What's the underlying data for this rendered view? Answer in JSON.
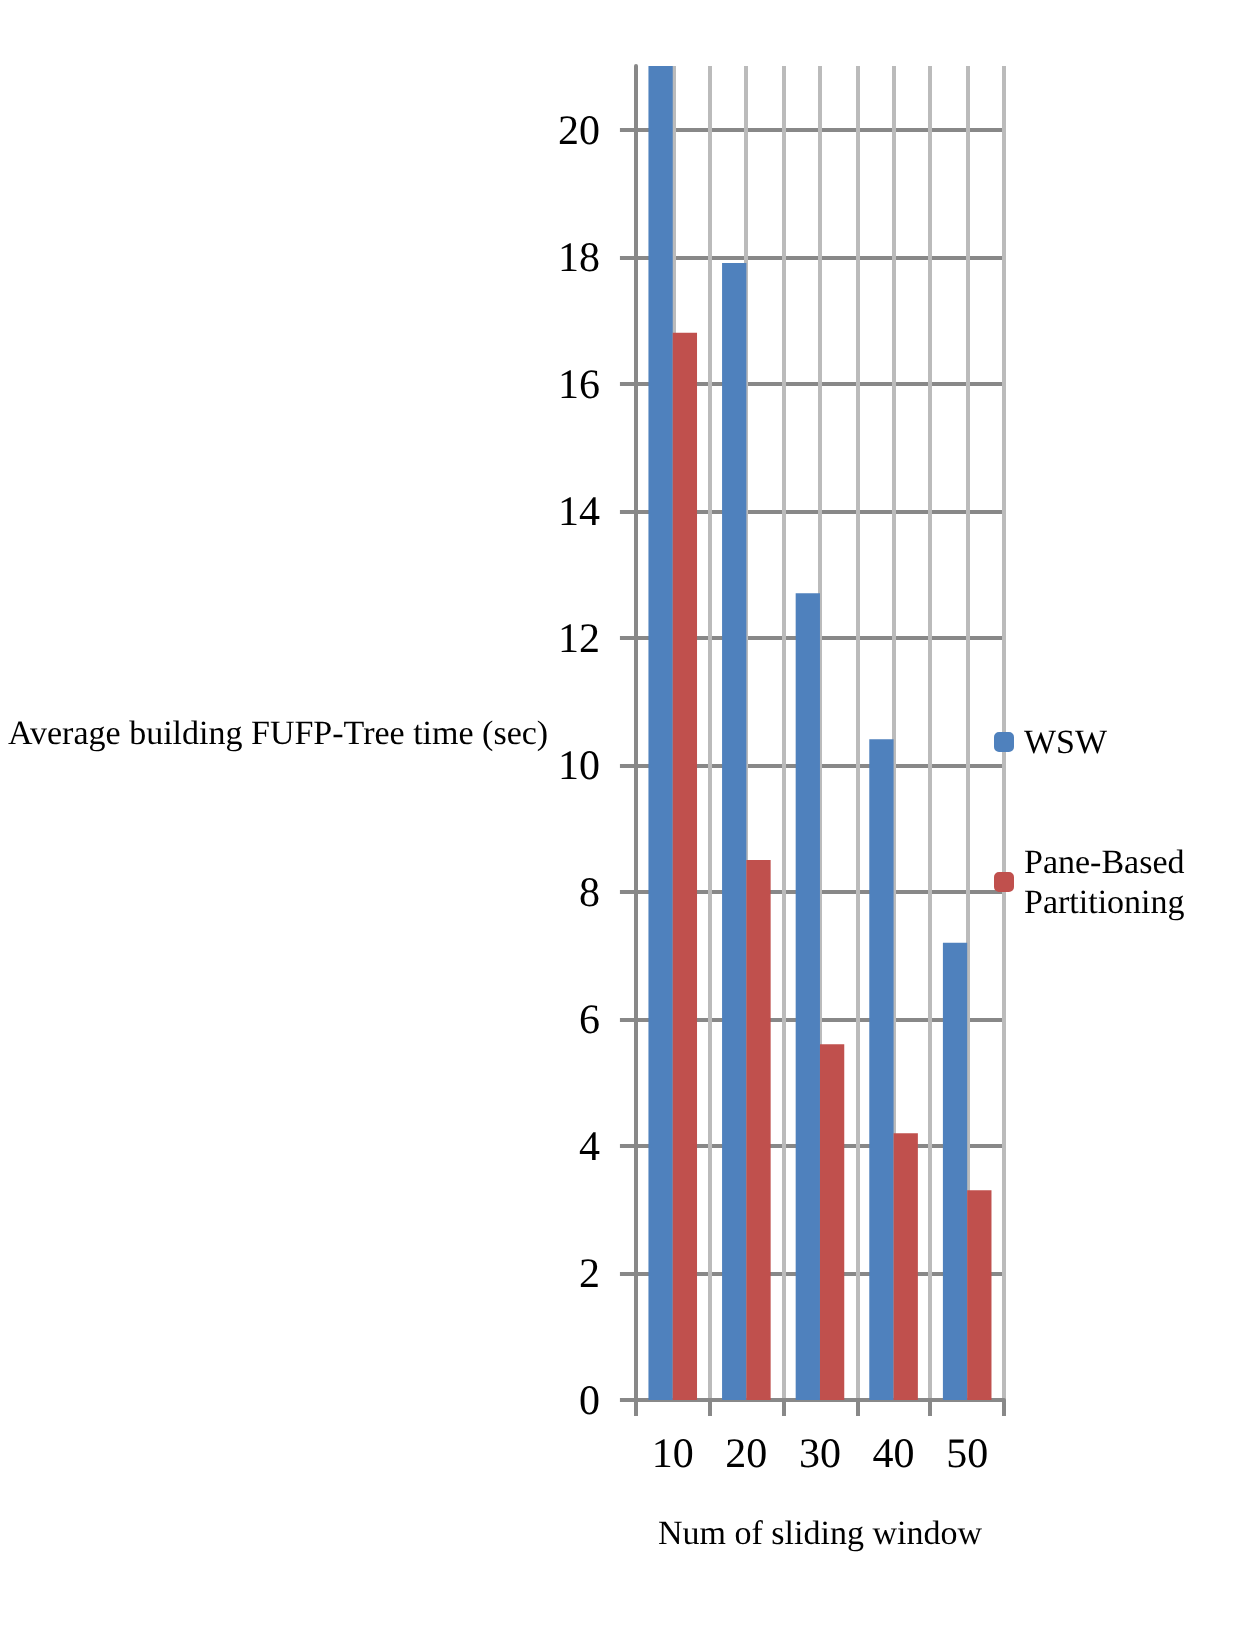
{
  "chart_data": {
    "type": "bar",
    "xlabel": "Num of sliding window",
    "ylabel": "Average building FUFP-Tree time (sec)",
    "categories": [
      "10",
      "20",
      "30",
      "40",
      "50"
    ],
    "series": [
      {
        "name": "WSW",
        "color": "#4f81bd",
        "values": [
          21,
          17.9,
          12.7,
          10.4,
          7.2
        ]
      },
      {
        "name": "Pane-Based Partitioning",
        "color": "#c0504d",
        "values": [
          16.8,
          8.5,
          5.6,
          4.2,
          3.3
        ]
      }
    ],
    "ylim": [
      0,
      21
    ],
    "yticks": [
      0,
      2,
      4,
      6,
      8,
      10,
      12,
      14,
      16,
      18,
      20
    ],
    "grid": true,
    "legend": "right"
  }
}
